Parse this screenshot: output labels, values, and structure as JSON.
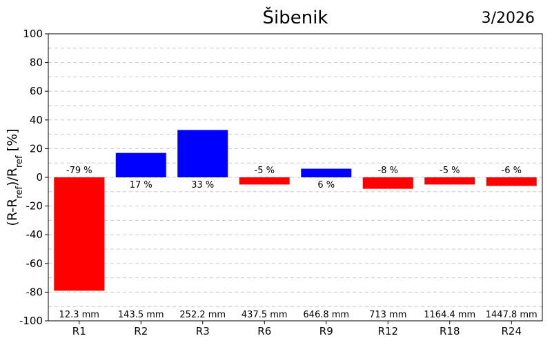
{
  "chart_data": {
    "type": "bar",
    "title": "Šibenik",
    "date": "3/2026",
    "ylabel_main": "(R-R",
    "ylabel_sub1": "ref",
    "ylabel_mid": ")/R",
    "ylabel_sub2": "ref",
    "ylabel_end": " [%]",
    "ylim": [
      -100,
      100
    ],
    "yticks": [
      -100,
      -80,
      -60,
      -40,
      -20,
      0,
      20,
      40,
      60,
      80,
      100
    ],
    "grid": true,
    "categories": [
      "R1",
      "R2",
      "R3",
      "R6",
      "R9",
      "R12",
      "R18",
      "R24"
    ],
    "values": [
      -79,
      17,
      33,
      -5,
      6,
      -8,
      -5,
      -6
    ],
    "value_labels": [
      "-79 %",
      "17 %",
      "33 %",
      "-5 %",
      "6 %",
      "-8 %",
      "-5 %",
      "-6 %"
    ],
    "amounts": [
      "12.3 mm",
      "143.5 mm",
      "252.2 mm",
      "437.5 mm",
      "646.8 mm",
      "713 mm",
      "1164.4 mm",
      "1447.8 mm"
    ],
    "colors": {
      "positive": "#0000ff",
      "negative": "#ff0000"
    }
  }
}
